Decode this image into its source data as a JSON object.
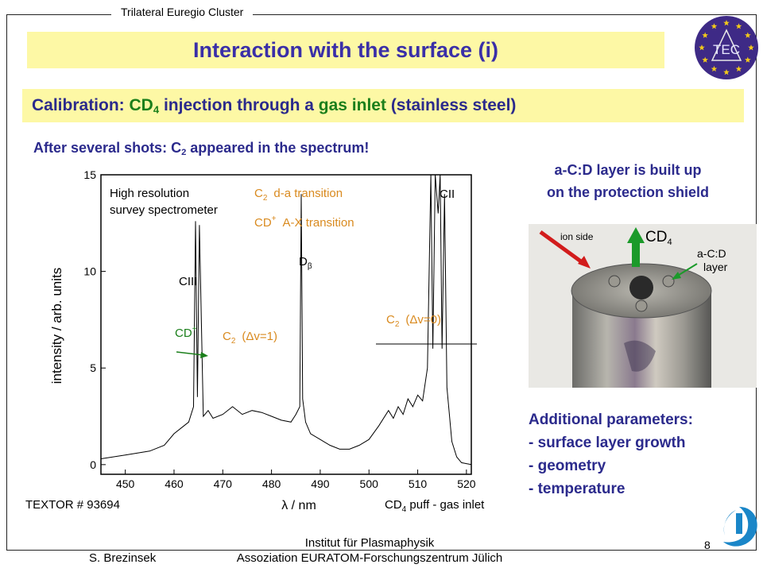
{
  "header": {
    "label": "Trilateral Euregio Cluster"
  },
  "title": "Interaction with the surface (i)",
  "calibration": {
    "prefix": "Calibration: ",
    "species": "CD",
    "species_sub": "4",
    "mid": " injection through a ",
    "inlet": "gas inlet",
    "suffix": " (stainless steel)"
  },
  "after_shots": {
    "prefix": "After several shots: C",
    "sub": "2",
    "suffix": " appeared in the spectrum!"
  },
  "layer_caption": {
    "line1": "a-C:D layer is built up",
    "line2": "on the protection shield"
  },
  "additional": {
    "title": "Additional parameters:",
    "items": [
      "- surface layer growth",
      "- geometry",
      "- temperature"
    ]
  },
  "photo": {
    "ion_side": "ion side",
    "cd4": "CD",
    "cd4_sub": "4",
    "acd_line1": "a-C:D",
    "acd_line2": "layer"
  },
  "footer": {
    "author": "S. Brezinsek",
    "institute_line1": "Institut für Plasmaphysik",
    "institute_line2": "Assoziation EURATOM-Forschungszentrum Jülich",
    "page": "8"
  },
  "logo": {
    "tec": "TEC"
  },
  "colors": {
    "title": "#3a2fa8",
    "text": "#2b2a8c",
    "highlight": "#fdf8a5",
    "green": "#1b7f1b",
    "orange": "#d98a1f"
  },
  "chart_data": {
    "type": "line",
    "title": "",
    "xlabel": "λ / nm",
    "ylabel": "intensity / arb. units",
    "xlim": [
      445,
      521
    ],
    "ylim": [
      -0.5,
      15
    ],
    "xticks": [
      450,
      460,
      470,
      480,
      490,
      500,
      510,
      520
    ],
    "yticks": [
      0,
      5,
      10,
      15
    ],
    "series": [
      {
        "x": [
          445,
          450,
          455,
          458,
          460,
          462,
          463,
          464,
          464.4,
          464.8,
          465.2,
          466,
          467,
          468,
          470,
          472,
          474,
          476,
          478,
          480,
          482,
          484,
          485,
          485.8,
          486.1,
          486.4,
          487,
          488,
          490,
          492,
          494,
          496,
          498,
          500,
          502,
          504,
          505,
          506,
          507,
          508,
          509,
          510,
          511,
          512,
          512.7,
          513.1,
          513.6,
          514.2,
          514.6,
          515,
          515.5,
          516,
          517,
          518,
          519,
          520,
          521
        ],
        "y": [
          0.3,
          0.5,
          0.7,
          1.0,
          1.6,
          2.0,
          2.2,
          3.0,
          12.6,
          3.5,
          12.4,
          2.5,
          2.8,
          2.4,
          2.6,
          3.0,
          2.6,
          2.8,
          2.7,
          2.5,
          2.3,
          2.2,
          2.6,
          3.0,
          14.0,
          3.4,
          2.2,
          1.6,
          1.3,
          1.0,
          0.8,
          0.8,
          1.0,
          1.3,
          2.0,
          2.8,
          2.4,
          3.0,
          2.6,
          3.4,
          3.0,
          3.6,
          3.3,
          5.0,
          15.0,
          6.0,
          15.0,
          13.0,
          15.0,
          6.0,
          14.0,
          4.0,
          1.2,
          0.4,
          0.1,
          0.05,
          0.0
        ]
      }
    ],
    "annotations": {
      "survey1": "High resolution",
      "survey2": "survey spectrometer",
      "c2_da": "d-a transition",
      "cd_ax": "A-X transition",
      "cii": "CII",
      "ciii": "CIII",
      "dbeta": "D",
      "dbeta_sub": "β",
      "c2_dv0": "(Δv=0)",
      "c2_dv1": "(Δv=1)",
      "cd": "CD",
      "cd_sup": "+",
      "c": "C",
      "c_sub": "2",
      "textor": "TEXTOR # 93694",
      "puff": "CD",
      "puff_sub": "4",
      "puff_rest": " puff - gas inlet"
    }
  }
}
